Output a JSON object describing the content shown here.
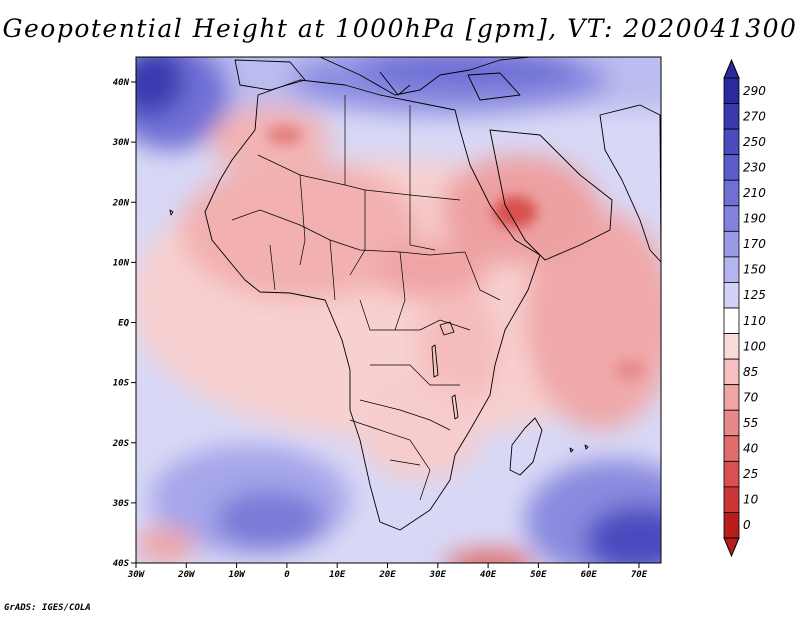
{
  "map": {
    "title": "Geopotential Height at 1000hPa [gpm], VT: 2020041300",
    "variable": "Geopotential Height",
    "level": "1000hPa",
    "units": "gpm",
    "valid_time": "2020041300",
    "credit": "GrADS: IGES/COLA",
    "region": "Africa",
    "lat_ticks": [
      "40N",
      "30N",
      "20N",
      "10N",
      "EQ",
      "10S",
      "20S",
      "30S",
      "40S"
    ],
    "lon_ticks": [
      "30W",
      "20W",
      "10W",
      "0",
      "10E",
      "20E",
      "30E",
      "40E",
      "50E",
      "60E",
      "70E"
    ],
    "legend": {
      "labels": [
        "290",
        "270",
        "250",
        "230",
        "210",
        "190",
        "170",
        "150",
        "125",
        "110",
        "100",
        "85",
        "70",
        "55",
        "40",
        "25",
        "10",
        "0"
      ],
      "colors": [
        "#2a2aa0",
        "#3a3ab0",
        "#4b4bc0",
        "#5c5ccc",
        "#6f6fd6",
        "#8383de",
        "#9a9ae6",
        "#b4b4ee",
        "#d2d2f6",
        "#ffffff",
        "#fbdada",
        "#f6c0c0",
        "#f0a4a4",
        "#e98888",
        "#e06c6c",
        "#d85050",
        "#cc3636",
        "#b81c1c"
      ]
    }
  }
}
